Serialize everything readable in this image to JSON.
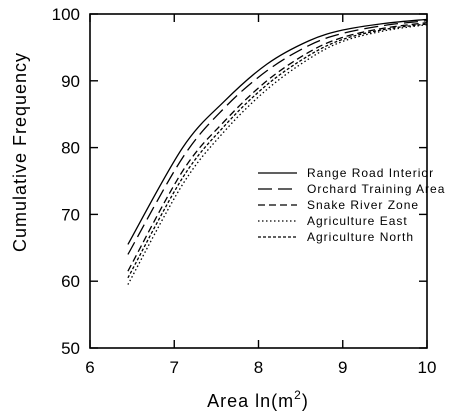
{
  "chart_data": {
    "type": "line",
    "title": "",
    "xlabel_main": "Area ln(m",
    "xlabel_sup": "2",
    "xlabel_close": ")",
    "ylabel": "Cumulative Frequency",
    "xlim": [
      6,
      10
    ],
    "ylim": [
      50,
      100
    ],
    "xticks": [
      6,
      7,
      8,
      9,
      10
    ],
    "yticks": [
      50,
      60,
      70,
      80,
      90,
      100
    ],
    "grid": false,
    "legend_position": "right",
    "x": [
      6.45,
      7.1,
      7.6,
      8.1,
      8.6,
      9.0,
      9.5,
      10.0
    ],
    "series": [
      {
        "name": "Range Road Interior",
        "dash": "solid",
        "values": [
          65.5,
          80.0,
          87.0,
          92.5,
          96.0,
          97.6,
          98.6,
          99.2
        ]
      },
      {
        "name": "Orchard Training Area",
        "dash": "long-dash",
        "values": [
          64.0,
          78.5,
          86.0,
          91.5,
          95.3,
          97.1,
          98.3,
          99.0
        ]
      },
      {
        "name": "Snake River Zone",
        "dash": "medium-dash",
        "values": [
          61.5,
          76.5,
          84.0,
          90.0,
          94.3,
          96.5,
          97.9,
          98.7
        ]
      },
      {
        "name": "Agriculture East",
        "dash": "dotted",
        "values": [
          59.5,
          74.5,
          82.5,
          88.7,
          93.3,
          95.9,
          97.5,
          98.4
        ]
      },
      {
        "name": "Agriculture North",
        "dash": "short-dash",
        "values": [
          60.5,
          75.5,
          83.3,
          89.4,
          93.8,
          96.2,
          97.7,
          98.5
        ]
      }
    ]
  }
}
